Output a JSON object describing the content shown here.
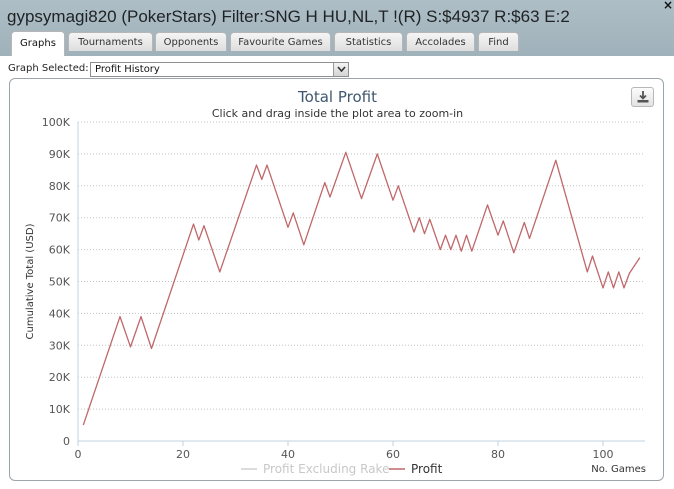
{
  "window": {
    "title": "gypsymagi820 (PokerStars) Filter:SNG H HU,NL,T !(R) S:$4937 R:$63 E:2",
    "close_icon": "×"
  },
  "tabs": [
    {
      "label": "Graphs",
      "active": true
    },
    {
      "label": "Tournaments",
      "active": false
    },
    {
      "label": "Opponents",
      "active": false
    },
    {
      "label": "Favourite Games",
      "active": false
    },
    {
      "label": "Statistics",
      "active": false
    },
    {
      "label": "Accolades",
      "active": false
    },
    {
      "label": "Find",
      "active": false
    }
  ],
  "graph_select": {
    "label": "Graph Selected:",
    "value": "Profit History"
  },
  "icons": {
    "close": "close-icon",
    "dropdown": "chevron-down-icon",
    "export": "download-icon"
  },
  "colors": {
    "profit_line": "#c0676a",
    "excluding_rake_line": "#d0d0d0",
    "title_color": "#3e576f",
    "titlebar": "#a8bac2"
  },
  "chart_data": {
    "type": "line",
    "title": "Total Profit",
    "subtitle": "Click and drag inside the plot area to zoom-in",
    "xlabel": "No. Games",
    "ylabel": "Cumulative Total (USD)",
    "xlim": [
      0,
      108
    ],
    "ylim": [
      0,
      100000
    ],
    "x_ticks": [
      "0",
      "20",
      "40",
      "60",
      "80",
      "100"
    ],
    "y_ticks": [
      "0",
      "10K",
      "20K",
      "30K",
      "40K",
      "50K",
      "60K",
      "70K",
      "80K",
      "90K",
      "100K"
    ],
    "grid": true,
    "legend_position": "bottom-center",
    "series": [
      {
        "name": "Profit Excluding Rake",
        "color": "#d0d0d0",
        "x": [],
        "y": []
      },
      {
        "name": "Profit",
        "color": "#c0676a",
        "x": [
          1,
          8,
          10,
          12,
          14,
          22,
          23,
          24,
          27,
          34,
          35,
          36,
          40,
          41,
          43,
          47,
          48,
          51,
          54,
          57,
          60,
          61,
          64,
          65,
          66,
          67,
          69,
          70,
          71,
          72,
          73,
          74,
          75,
          78,
          80,
          81,
          83,
          85,
          86,
          91,
          97,
          98,
          100,
          101,
          102,
          103,
          104,
          105,
          107
        ],
        "y": [
          5000,
          39000,
          29500,
          39000,
          29000,
          68000,
          63000,
          67500,
          53000,
          86500,
          82000,
          86500,
          67000,
          71500,
          61500,
          81000,
          76500,
          90500,
          76000,
          90000,
          75500,
          80000,
          65500,
          70000,
          65000,
          69500,
          60000,
          64500,
          60000,
          64500,
          59500,
          64500,
          59500,
          74000,
          64500,
          69000,
          59000,
          68500,
          63500,
          88000,
          53000,
          58000,
          48000,
          53000,
          48000,
          53000,
          48000,
          52500,
          57500
        ]
      }
    ]
  }
}
